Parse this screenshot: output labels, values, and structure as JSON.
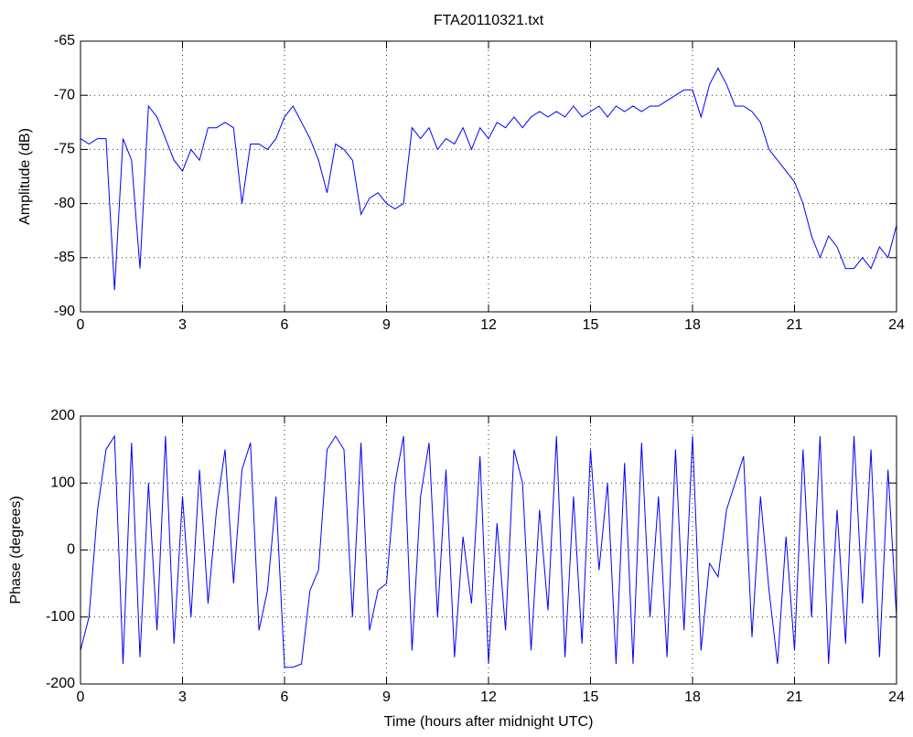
{
  "chart_data": [
    {
      "type": "line",
      "title": "FTA20110321.txt",
      "y_label": "Amplitude (dB)",
      "color": "#0000ff",
      "grid": true,
      "x": [
        0,
        0.25,
        0.5,
        0.75,
        1,
        1.25,
        1.5,
        1.75,
        2,
        2.25,
        2.5,
        2.75,
        3,
        3.25,
        3.5,
        3.75,
        4,
        4.25,
        4.5,
        4.75,
        5,
        5.25,
        5.5,
        5.75,
        6,
        6.25,
        6.5,
        6.75,
        7,
        7.25,
        7.5,
        7.75,
        8,
        8.25,
        8.5,
        8.75,
        9,
        9.25,
        9.5,
        9.75,
        10,
        10.25,
        10.5,
        10.75,
        11,
        11.25,
        11.5,
        11.75,
        12,
        12.25,
        12.5,
        12.75,
        13,
        13.25,
        13.5,
        13.75,
        14,
        14.25,
        14.5,
        14.75,
        15,
        15.25,
        15.5,
        15.75,
        16,
        16.25,
        16.5,
        16.75,
        17,
        17.25,
        17.5,
        17.75,
        18,
        18.25,
        18.5,
        18.75,
        19,
        19.25,
        19.5,
        19.75,
        20,
        20.25,
        20.5,
        20.75,
        21,
        21.25,
        21.5,
        21.75,
        22,
        22.25,
        22.5,
        22.75,
        23,
        23.25,
        23.5,
        23.75,
        24
      ],
      "values": [
        -74,
        -74.5,
        -74,
        -74,
        -88,
        -74,
        -76,
        -86,
        -71,
        -72,
        -74,
        -76,
        -77,
        -75,
        -76,
        -73,
        -73,
        -72.5,
        -73,
        -80,
        -74.5,
        -74.5,
        -75,
        -74,
        -72,
        -71,
        -72.5,
        -74,
        -76,
        -79,
        -74.5,
        -75,
        -76,
        -81,
        -79.5,
        -79,
        -80,
        -80.5,
        -80,
        -73,
        -74,
        -73,
        -75,
        -74,
        -74.5,
        -73,
        -75,
        -73,
        -74,
        -72.5,
        -73,
        -72,
        -73,
        -72,
        -71.5,
        -72,
        -71.5,
        -72,
        -71,
        -72,
        -71.5,
        -71,
        -72,
        -71,
        -71.5,
        -71,
        -71.5,
        -71,
        -71,
        -70.5,
        -70,
        -69.5,
        -69.5,
        -72,
        -69,
        -67.5,
        -69,
        -71,
        -71,
        -71.5,
        -72.5,
        -75,
        -76,
        -77,
        -78,
        -80,
        -83,
        -85,
        -83,
        -84,
        -86,
        -86,
        -85,
        -86,
        -84,
        -85,
        -82
      ],
      "xlim": [
        0,
        24
      ],
      "xticks": [
        0,
        3,
        6,
        9,
        12,
        15,
        18,
        21,
        24
      ],
      "ylim": [
        -90,
        -65
      ],
      "yticks": [
        -90,
        -85,
        -80,
        -75,
        -70,
        -65
      ]
    },
    {
      "type": "line",
      "x_label": "Time (hours after midnight UTC)",
      "y_label": "Phase (degrees)",
      "color": "#0000ff",
      "grid": true,
      "x": [
        0,
        0.25,
        0.5,
        0.75,
        1,
        1.25,
        1.5,
        1.75,
        2,
        2.25,
        2.5,
        2.75,
        3,
        3.25,
        3.5,
        3.75,
        4,
        4.25,
        4.5,
        4.75,
        5,
        5.25,
        5.5,
        5.75,
        6,
        6.25,
        6.5,
        6.75,
        7,
        7.25,
        7.5,
        7.75,
        8,
        8.25,
        8.5,
        8.75,
        9,
        9.25,
        9.5,
        9.75,
        10,
        10.25,
        10.5,
        10.75,
        11,
        11.25,
        11.5,
        11.75,
        12,
        12.25,
        12.5,
        12.75,
        13,
        13.25,
        13.5,
        13.75,
        14,
        14.25,
        14.5,
        14.75,
        15,
        15.25,
        15.5,
        15.75,
        16,
        16.25,
        16.5,
        16.75,
        17,
        17.25,
        17.5,
        17.75,
        18,
        18.25,
        18.5,
        18.75,
        19,
        19.25,
        19.5,
        19.75,
        20,
        20.25,
        20.5,
        20.75,
        21,
        21.25,
        21.5,
        21.75,
        22,
        22.25,
        22.5,
        22.75,
        23,
        23.25,
        23.5,
        23.75,
        24
      ],
      "values": [
        -150,
        -100,
        60,
        150,
        170,
        -170,
        160,
        -160,
        100,
        -120,
        170,
        -140,
        80,
        -100,
        120,
        -80,
        60,
        150,
        -50,
        120,
        160,
        -120,
        -60,
        80,
        -175,
        -175,
        -170,
        -60,
        -30,
        150,
        170,
        150,
        -100,
        160,
        -120,
        -60,
        -50,
        100,
        170,
        -150,
        80,
        160,
        -100,
        120,
        -160,
        20,
        -80,
        140,
        -170,
        40,
        -120,
        150,
        100,
        -150,
        60,
        -90,
        170,
        -160,
        80,
        -140,
        150,
        -30,
        100,
        -170,
        130,
        -170,
        160,
        -100,
        80,
        -160,
        150,
        -120,
        170,
        -150,
        -20,
        -40,
        60,
        100,
        140,
        -130,
        80,
        -60,
        -170,
        20,
        -150,
        150,
        -100,
        170,
        -170,
        60,
        -140,
        170,
        -80,
        150,
        -160,
        120,
        -100
      ],
      "xlim": [
        0,
        24
      ],
      "xticks": [
        0,
        3,
        6,
        9,
        12,
        15,
        18,
        21,
        24
      ],
      "ylim": [
        -200,
        200
      ],
      "yticks": [
        -200,
        -100,
        0,
        100,
        200
      ]
    }
  ]
}
